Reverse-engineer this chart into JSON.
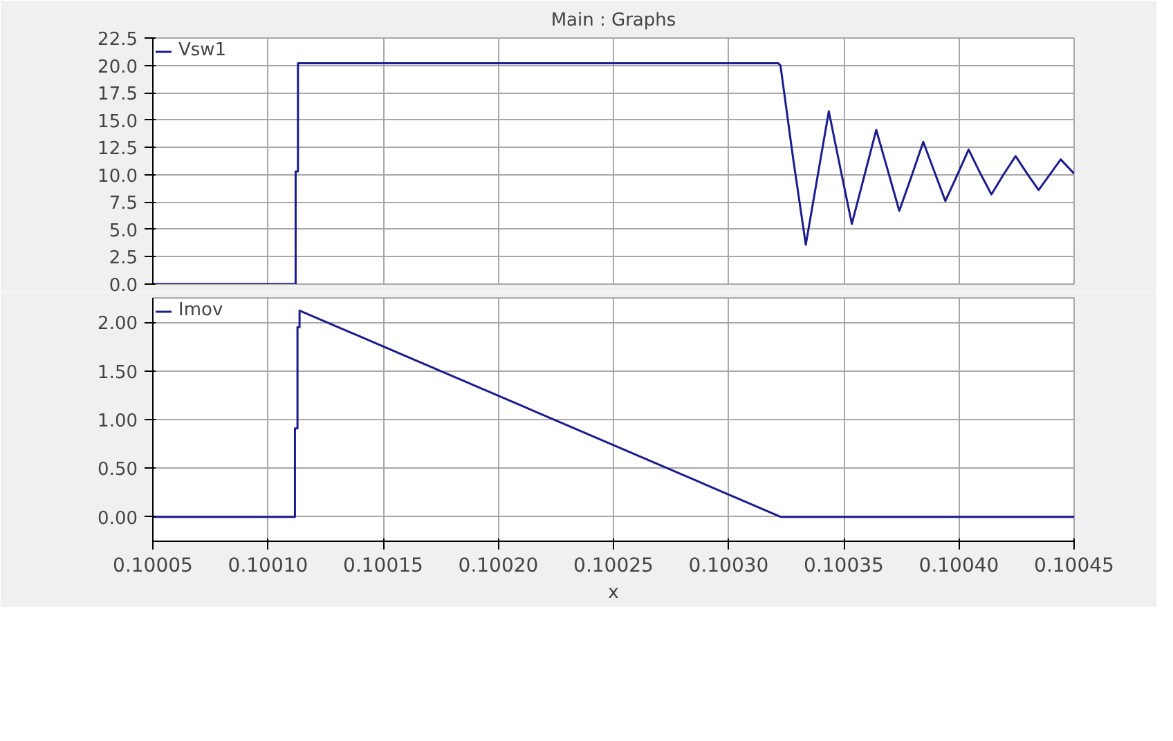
{
  "chart_data": [
    {
      "type": "line",
      "title": "Main : Graphs",
      "xlim": [
        0.10005,
        0.10045
      ],
      "ylim": [
        0,
        22.5
      ],
      "xticks": [
        {
          "value": 0.10005,
          "label": null
        },
        {
          "value": 0.1001,
          "label": null
        },
        {
          "value": 0.10015,
          "label": null
        },
        {
          "value": 0.1002,
          "label": null
        },
        {
          "value": 0.10025,
          "label": null
        },
        {
          "value": 0.1003,
          "label": null
        },
        {
          "value": 0.10035,
          "label": null
        },
        {
          "value": 0.1004,
          "label": null
        },
        {
          "value": 0.10045,
          "label": null
        }
      ],
      "yticks": [
        {
          "value": 0,
          "label": "0.0"
        },
        {
          "value": 2.5,
          "label": "2.5"
        },
        {
          "value": 5,
          "label": "5.0"
        },
        {
          "value": 7.5,
          "label": "7.5"
        },
        {
          "value": 10,
          "label": "10.0"
        },
        {
          "value": 12.5,
          "label": "12.5"
        },
        {
          "value": 15,
          "label": "15.0"
        },
        {
          "value": 17.5,
          "label": "17.5"
        },
        {
          "value": 20,
          "label": "20.0"
        },
        {
          "value": 22.5,
          "label": "22.5"
        }
      ],
      "tick_labels": "y",
      "grid": true,
      "legend": "top left",
      "line_style": "solid",
      "marker": "none",
      "series": [
        {
          "name": "Vsw1",
          "color": "#1c1c8f",
          "x": [
            0.10005,
            0.100112,
            0.100112,
            0.100113,
            0.100113,
            0.1003215,
            0.1003225,
            0.100328,
            0.1003335,
            0.1003385,
            0.1003435,
            0.1003485,
            0.1003535,
            0.1003588,
            0.1003641,
            0.1003691,
            0.1003741,
            0.1003793,
            0.1003845,
            0.1003893,
            0.1003941,
            0.1003991,
            0.1004042,
            0.1004091,
            0.1004141,
            0.1004193,
            0.1004246,
            0.1004296,
            0.1004346,
            0.1004394,
            0.1004442,
            0.10045
          ],
          "values": [
            0,
            0,
            10.3,
            10.3,
            20.2,
            20.2,
            20.0,
            11.5,
            3.6,
            9.7,
            15.8,
            10.6,
            5.5,
            9.8,
            14.1,
            10.4,
            6.7,
            9.8,
            13.0,
            10.3,
            7.6,
            9.9,
            12.3,
            10.2,
            8.2,
            10.0,
            11.7,
            10.1,
            8.6,
            10.0,
            11.4,
            10.1
          ]
        }
      ]
    },
    {
      "type": "line",
      "xlabel": "x",
      "xlim": [
        0.10005,
        0.10045
      ],
      "ylim": [
        -0.25,
        2.25
      ],
      "xticks": [
        {
          "value": 0.10005,
          "label": "0.10005"
        },
        {
          "value": 0.1001,
          "label": "0.10010"
        },
        {
          "value": 0.10015,
          "label": "0.10015"
        },
        {
          "value": 0.1002,
          "label": "0.10020"
        },
        {
          "value": 0.10025,
          "label": "0.10025"
        },
        {
          "value": 0.1003,
          "label": "0.10030"
        },
        {
          "value": 0.10035,
          "label": "0.10035"
        },
        {
          "value": 0.1004,
          "label": "0.10040"
        },
        {
          "value": 0.10045,
          "label": "0.10045"
        }
      ],
      "yticks": [
        {
          "value": 0,
          "label": "0.00"
        },
        {
          "value": 0.5,
          "label": "0.50"
        },
        {
          "value": 1,
          "label": "1.00"
        },
        {
          "value": 1.5,
          "label": "1.50"
        },
        {
          "value": 2,
          "label": "2.00"
        }
      ],
      "grid": true,
      "legend": "top left",
      "line_style": "solid",
      "marker": "none",
      "series": [
        {
          "name": "Imov",
          "color": "#1c1c8f",
          "x": [
            0.10005,
            0.1001117,
            0.1001117,
            0.1001128,
            0.1001128,
            0.1001137,
            0.1001137,
            0.1003227,
            0.10045
          ],
          "values": [
            0,
            0,
            0.91,
            0.91,
            1.95,
            1.95,
            2.12,
            0,
            0
          ]
        }
      ]
    }
  ]
}
